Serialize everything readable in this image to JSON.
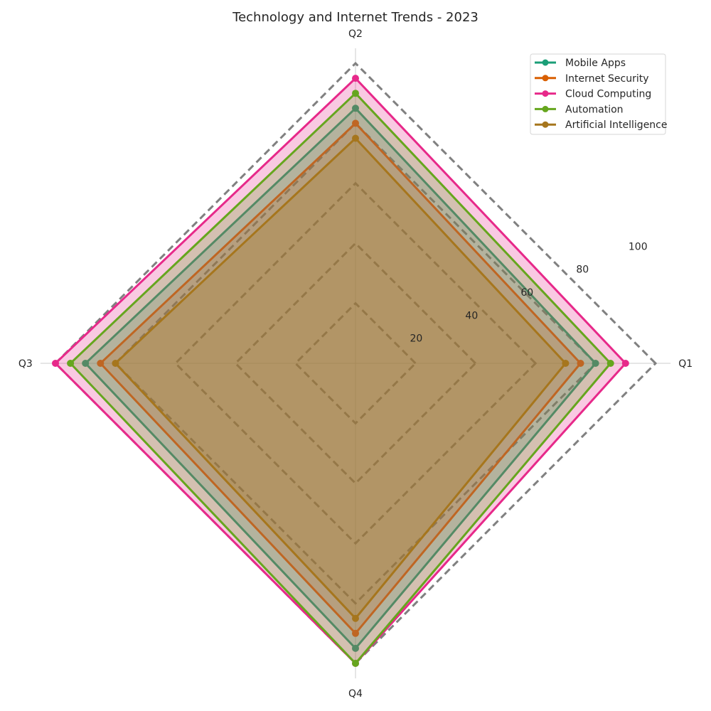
{
  "chart_data": {
    "type": "radar",
    "title": "Technology and Internet Trends - 2023",
    "categories": [
      "Q1",
      "Q2",
      "Q3",
      "Q4"
    ],
    "rlim": [
      0,
      100
    ],
    "r_ticks": [
      20,
      40,
      60,
      80,
      100
    ],
    "grid": true,
    "legend_position": "top-right",
    "series": [
      {
        "name": "Mobile Apps",
        "color": "#1b9e77",
        "values": [
          80,
          85,
          90,
          95
        ]
      },
      {
        "name": "Internet Security",
        "color": "#d95f02",
        "values": [
          75,
          80,
          85,
          90
        ]
      },
      {
        "name": "Cloud Computing",
        "color": "#e7298a",
        "values": [
          90,
          95,
          100,
          100
        ]
      },
      {
        "name": "Automation",
        "color": "#66a61e",
        "values": [
          85,
          90,
          95,
          100
        ]
      },
      {
        "name": "Artificial Intelligence",
        "color": "#a6761d",
        "values": [
          70,
          75,
          80,
          85
        ]
      }
    ]
  }
}
